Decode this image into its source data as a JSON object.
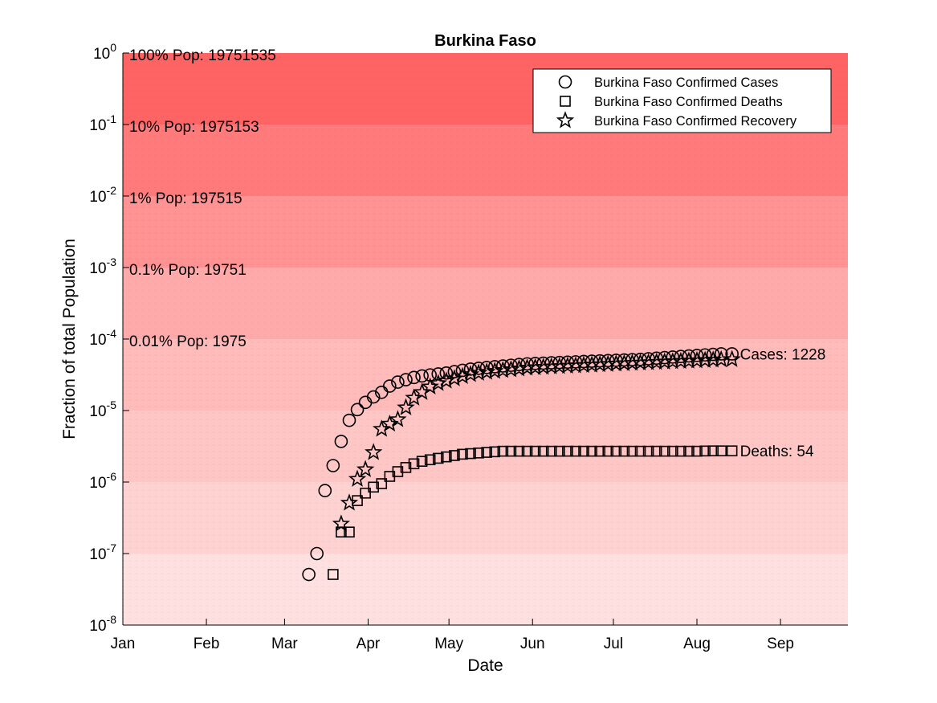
{
  "chart_data": {
    "type": "scatter",
    "title": "Burkina Faso",
    "xlabel": "Date",
    "ylabel": "Fraction of total Population",
    "x_tick_labels": [
      "Jan",
      "Feb",
      "Mar",
      "Apr",
      "May",
      "Jun",
      "Jul",
      "Aug",
      "Sep"
    ],
    "x_tick_dates": [
      "2020-01-01",
      "2020-02-01",
      "2020-03-01",
      "2020-04-01",
      "2020-05-01",
      "2020-06-01",
      "2020-07-01",
      "2020-08-01",
      "2020-09-01"
    ],
    "xlim": [
      "2020-01-01",
      "2020-09-26"
    ],
    "ylim": [
      1e-08,
      1
    ],
    "y_scale": "log",
    "y_ticks": [
      {
        "base": "10",
        "exp": "0"
      },
      {
        "base": "10",
        "exp": "-1"
      },
      {
        "base": "10",
        "exp": "-2"
      },
      {
        "base": "10",
        "exp": "-3"
      },
      {
        "base": "10",
        "exp": "-4"
      },
      {
        "base": "10",
        "exp": "-5"
      },
      {
        "base": "10",
        "exp": "-6"
      },
      {
        "base": "10",
        "exp": "-7"
      },
      {
        "base": "10",
        "exp": "-8"
      }
    ],
    "population": 19751535,
    "band_labels": [
      "100% Pop: 19751535",
      "10% Pop: 1975153",
      "1% Pop: 197515",
      "0.1% Pop: 19751",
      "0.01% Pop: 1975"
    ],
    "band_colors": [
      "#ff6464",
      "#ff7b7b",
      "#ff9393",
      "#ffaaaa",
      "#ffbaba",
      "#ffc6c6",
      "#ffd2d2",
      "#ffe0e0"
    ],
    "legend_position": "top-right",
    "series": [
      {
        "name": "Burkina Faso Confirmed Cases",
        "marker": "circle",
        "end_label": "Cases: 1228",
        "points": [
          [
            "2020-03-10",
            5.1e-08
          ],
          [
            "2020-03-13",
            1e-07
          ],
          [
            "2020-03-16",
            7.6e-07
          ],
          [
            "2020-03-19",
            1.7e-06
          ],
          [
            "2020-03-22",
            3.7e-06
          ],
          [
            "2020-03-25",
            7.3e-06
          ],
          [
            "2020-03-28",
            1.03e-05
          ],
          [
            "2020-03-31",
            1.3e-05
          ],
          [
            "2020-04-03",
            1.55e-05
          ],
          [
            "2020-04-06",
            1.8e-05
          ],
          [
            "2020-04-09",
            2.2e-05
          ],
          [
            "2020-04-12",
            2.5e-05
          ],
          [
            "2020-04-15",
            2.7e-05
          ],
          [
            "2020-04-18",
            2.9e-05
          ],
          [
            "2020-04-21",
            3.05e-05
          ],
          [
            "2020-04-24",
            3.15e-05
          ],
          [
            "2020-04-27",
            3.25e-05
          ],
          [
            "2020-04-30",
            3.35e-05
          ],
          [
            "2020-05-03",
            3.5e-05
          ],
          [
            "2020-05-06",
            3.65e-05
          ],
          [
            "2020-05-09",
            3.8e-05
          ],
          [
            "2020-05-12",
            3.9e-05
          ],
          [
            "2020-05-15",
            4e-05
          ],
          [
            "2020-05-18",
            4.1e-05
          ],
          [
            "2020-05-21",
            4.2e-05
          ],
          [
            "2020-05-24",
            4.3e-05
          ],
          [
            "2020-05-27",
            4.4e-05
          ],
          [
            "2020-05-30",
            4.5e-05
          ],
          [
            "2020-06-02",
            4.55e-05
          ],
          [
            "2020-06-05",
            4.6e-05
          ],
          [
            "2020-06-08",
            4.65e-05
          ],
          [
            "2020-06-11",
            4.7e-05
          ],
          [
            "2020-06-14",
            4.75e-05
          ],
          [
            "2020-06-17",
            4.8e-05
          ],
          [
            "2020-06-20",
            4.85e-05
          ],
          [
            "2020-06-23",
            4.9e-05
          ],
          [
            "2020-06-26",
            4.95e-05
          ],
          [
            "2020-06-29",
            5e-05
          ],
          [
            "2020-07-02",
            5.05e-05
          ],
          [
            "2020-07-05",
            5.1e-05
          ],
          [
            "2020-07-08",
            5.15e-05
          ],
          [
            "2020-07-11",
            5.2e-05
          ],
          [
            "2020-07-14",
            5.3e-05
          ],
          [
            "2020-07-17",
            5.4e-05
          ],
          [
            "2020-07-20",
            5.5e-05
          ],
          [
            "2020-07-23",
            5.6e-05
          ],
          [
            "2020-07-26",
            5.7e-05
          ],
          [
            "2020-07-29",
            5.8e-05
          ],
          [
            "2020-08-01",
            5.9e-05
          ],
          [
            "2020-08-04",
            6e-05
          ],
          [
            "2020-08-07",
            6.1e-05
          ],
          [
            "2020-08-10",
            6.2e-05
          ],
          [
            "2020-08-14",
            6.2e-05
          ]
        ]
      },
      {
        "name": "Burkina Faso Confirmed Deaths",
        "marker": "square",
        "end_label": "Deaths: 54",
        "points": [
          [
            "2020-03-19",
            5.1e-08
          ],
          [
            "2020-03-22",
            2e-07
          ],
          [
            "2020-03-25",
            2e-07
          ],
          [
            "2020-03-28",
            5.5e-07
          ],
          [
            "2020-03-31",
            7e-07
          ],
          [
            "2020-04-03",
            8.5e-07
          ],
          [
            "2020-04-06",
            9.5e-07
          ],
          [
            "2020-04-09",
            1.2e-06
          ],
          [
            "2020-04-12",
            1.4e-06
          ],
          [
            "2020-04-15",
            1.6e-06
          ],
          [
            "2020-04-18",
            1.8e-06
          ],
          [
            "2020-04-21",
            1.95e-06
          ],
          [
            "2020-04-24",
            2.05e-06
          ],
          [
            "2020-04-27",
            2.15e-06
          ],
          [
            "2020-04-30",
            2.25e-06
          ],
          [
            "2020-05-03",
            2.35e-06
          ],
          [
            "2020-05-06",
            2.45e-06
          ],
          [
            "2020-05-09",
            2.5e-06
          ],
          [
            "2020-05-12",
            2.55e-06
          ],
          [
            "2020-05-15",
            2.6e-06
          ],
          [
            "2020-05-18",
            2.65e-06
          ],
          [
            "2020-05-21",
            2.7e-06
          ],
          [
            "2020-05-24",
            2.7e-06
          ],
          [
            "2020-05-27",
            2.7e-06
          ],
          [
            "2020-05-30",
            2.7e-06
          ],
          [
            "2020-06-02",
            2.7e-06
          ],
          [
            "2020-06-05",
            2.7e-06
          ],
          [
            "2020-06-08",
            2.7e-06
          ],
          [
            "2020-06-11",
            2.7e-06
          ],
          [
            "2020-06-14",
            2.7e-06
          ],
          [
            "2020-06-17",
            2.7e-06
          ],
          [
            "2020-06-20",
            2.7e-06
          ],
          [
            "2020-06-23",
            2.7e-06
          ],
          [
            "2020-06-26",
            2.7e-06
          ],
          [
            "2020-06-29",
            2.7e-06
          ],
          [
            "2020-07-02",
            2.7e-06
          ],
          [
            "2020-07-05",
            2.7e-06
          ],
          [
            "2020-07-08",
            2.7e-06
          ],
          [
            "2020-07-11",
            2.7e-06
          ],
          [
            "2020-07-14",
            2.7e-06
          ],
          [
            "2020-07-17",
            2.7e-06
          ],
          [
            "2020-07-20",
            2.7e-06
          ],
          [
            "2020-07-23",
            2.7e-06
          ],
          [
            "2020-07-26",
            2.7e-06
          ],
          [
            "2020-07-29",
            2.7e-06
          ],
          [
            "2020-08-01",
            2.7e-06
          ],
          [
            "2020-08-04",
            2.72e-06
          ],
          [
            "2020-08-07",
            2.73e-06
          ],
          [
            "2020-08-10",
            2.73e-06
          ],
          [
            "2020-08-14",
            2.73e-06
          ]
        ]
      },
      {
        "name": "Burkina Faso Confirmed Recovery",
        "marker": "star",
        "points": [
          [
            "2020-03-22",
            2.6e-07
          ],
          [
            "2020-03-25",
            5.1e-07
          ],
          [
            "2020-03-28",
            1.1e-06
          ],
          [
            "2020-03-31",
            1.5e-06
          ],
          [
            "2020-04-03",
            2.6e-06
          ],
          [
            "2020-04-06",
            5.5e-06
          ],
          [
            "2020-04-09",
            6.5e-06
          ],
          [
            "2020-04-12",
            7.5e-06
          ],
          [
            "2020-04-15",
            1.1e-05
          ],
          [
            "2020-04-18",
            1.5e-05
          ],
          [
            "2020-04-21",
            1.8e-05
          ],
          [
            "2020-04-24",
            2.15e-05
          ],
          [
            "2020-04-27",
            2.4e-05
          ],
          [
            "2020-04-30",
            2.6e-05
          ],
          [
            "2020-05-03",
            2.8e-05
          ],
          [
            "2020-05-06",
            3e-05
          ],
          [
            "2020-05-09",
            3.2e-05
          ],
          [
            "2020-05-12",
            3.35e-05
          ],
          [
            "2020-05-15",
            3.45e-05
          ],
          [
            "2020-05-18",
            3.55e-05
          ],
          [
            "2020-05-21",
            3.65e-05
          ],
          [
            "2020-05-24",
            3.75e-05
          ],
          [
            "2020-05-27",
            3.85e-05
          ],
          [
            "2020-05-30",
            3.95e-05
          ],
          [
            "2020-06-02",
            4e-05
          ],
          [
            "2020-06-05",
            4.05e-05
          ],
          [
            "2020-06-08",
            4.1e-05
          ],
          [
            "2020-06-11",
            4.15e-05
          ],
          [
            "2020-06-14",
            4.2e-05
          ],
          [
            "2020-06-17",
            4.25e-05
          ],
          [
            "2020-06-20",
            4.3e-05
          ],
          [
            "2020-06-23",
            4.35e-05
          ],
          [
            "2020-06-26",
            4.4e-05
          ],
          [
            "2020-06-29",
            4.45e-05
          ],
          [
            "2020-07-02",
            4.5e-05
          ],
          [
            "2020-07-05",
            4.55e-05
          ],
          [
            "2020-07-08",
            4.6e-05
          ],
          [
            "2020-07-11",
            4.65e-05
          ],
          [
            "2020-07-14",
            4.7e-05
          ],
          [
            "2020-07-17",
            4.75e-05
          ],
          [
            "2020-07-20",
            4.8e-05
          ],
          [
            "2020-07-23",
            4.85e-05
          ],
          [
            "2020-07-26",
            4.9e-05
          ],
          [
            "2020-07-29",
            4.95e-05
          ],
          [
            "2020-08-01",
            5e-05
          ],
          [
            "2020-08-04",
            5.05e-05
          ],
          [
            "2020-08-07",
            5.1e-05
          ],
          [
            "2020-08-10",
            5.15e-05
          ],
          [
            "2020-08-14",
            5.2e-05
          ]
        ]
      }
    ]
  }
}
